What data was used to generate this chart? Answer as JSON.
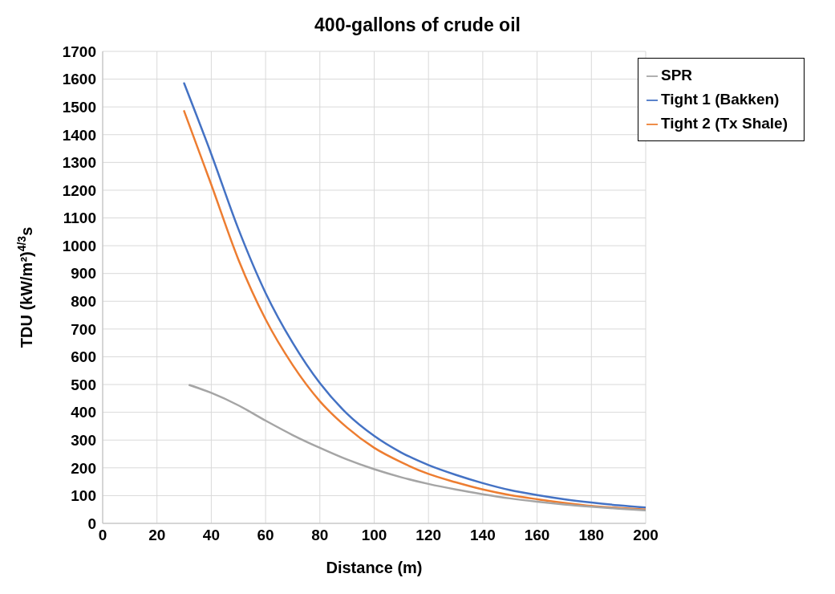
{
  "chart_data": {
    "type": "line",
    "title": "400-gallons of crude oil",
    "xlabel": "Distance (m)",
    "ylabel": "TDU (kW/m²)$^{4/3}$s",
    "xlim": [
      0,
      200
    ],
    "xticks": [
      0,
      20,
      40,
      60,
      80,
      100,
      120,
      140,
      160,
      180,
      200
    ],
    "ylim": [
      0,
      1700
    ],
    "yticks": [
      0,
      100,
      200,
      300,
      400,
      500,
      600,
      700,
      800,
      900,
      1000,
      1100,
      1200,
      1300,
      1400,
      1500,
      1600,
      1700
    ],
    "grid": true,
    "legend": "top right",
    "marker": "none",
    "line_style": "solid",
    "series": [
      {
        "name": "Tight 1 (Bakken)",
        "color": "#4472c4",
        "x": [
          30,
          40,
          50,
          60,
          70,
          80,
          90,
          100,
          110,
          120,
          130,
          140,
          150,
          160,
          170,
          180,
          190,
          200
        ],
        "values": [
          1585,
          1330,
          1060,
          830,
          650,
          505,
          395,
          315,
          255,
          210,
          175,
          145,
          120,
          102,
          87,
          75,
          65,
          57
        ]
      },
      {
        "name": "Tight 2 (Tx Shale)",
        "color": "#ed7d31",
        "x": [
          30,
          40,
          50,
          60,
          70,
          80,
          90,
          100,
          110,
          120,
          130,
          140,
          150,
          160,
          170,
          180,
          190,
          200
        ],
        "values": [
          1485,
          1220,
          950,
          735,
          570,
          440,
          345,
          272,
          220,
          178,
          148,
          122,
          102,
          87,
          74,
          63,
          56,
          50
        ]
      },
      {
        "name": "SPR",
        "color": "#a5a5a5",
        "x": [
          32,
          40,
          50,
          60,
          70,
          80,
          90,
          100,
          110,
          120,
          130,
          140,
          150,
          160,
          170,
          180,
          190,
          200
        ],
        "values": [
          498,
          470,
          425,
          370,
          318,
          272,
          230,
          195,
          166,
          142,
          122,
          105,
          90,
          78,
          68,
          60,
          53,
          47
        ]
      }
    ]
  }
}
